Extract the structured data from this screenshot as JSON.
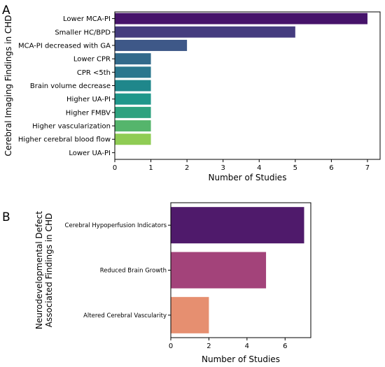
{
  "chart_data": [
    {
      "panel_label": "A",
      "type": "bar",
      "orientation": "horizontal",
      "categories": [
        "Lower MCA-PI",
        "Smaller HC/BPD",
        "MCA-PI decreased with GA",
        "Lower CPR",
        "CPR <5th",
        "Brain volume decrease",
        "Higher UA-PI",
        "Higher FMBV",
        "Higher vascularization",
        "Higher cerebral blood flow",
        "Lower UA-PI"
      ],
      "values": [
        7,
        5,
        2,
        1,
        1,
        1,
        1,
        1,
        1,
        1,
        0
      ],
      "colors": [
        "#46136a",
        "#453c7f",
        "#3e5888",
        "#326a8b",
        "#2a778e",
        "#1f878b",
        "#1f978b",
        "#2ea27f",
        "#55b56c",
        "#8fcc54",
        "#c6dc3a"
      ],
      "xlabel": "Number of Studies",
      "ylabel": "Cerebral Imaging Findings in CHD",
      "xlim": [
        0,
        7.35
      ],
      "xticks": [
        0,
        1,
        2,
        3,
        4,
        5,
        6,
        7
      ],
      "grid": false
    },
    {
      "panel_label": "B",
      "type": "bar",
      "orientation": "horizontal",
      "categories": [
        "Cerebral Hypoperfusion Indicators",
        "Reduced Brain Growth",
        "Altered Cerebral Vascularity"
      ],
      "values": [
        7,
        5,
        2
      ],
      "colors": [
        "#4f1a6b",
        "#a3437a",
        "#e68f70"
      ],
      "xlabel": "Number of Studies",
      "ylabel": [
        "Neurodevelopmental Defect",
        "Associated Findings in CHD"
      ],
      "xlim": [
        0,
        7.35
      ],
      "xticks": [
        0,
        2,
        4,
        6
      ],
      "grid": false
    }
  ]
}
